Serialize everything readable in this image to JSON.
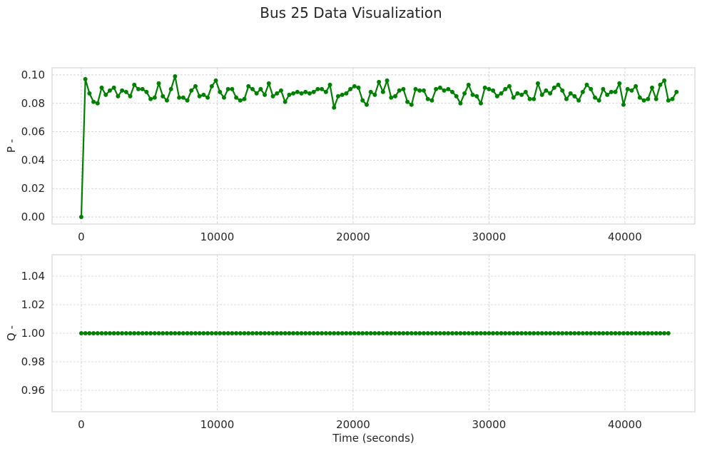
{
  "figure_title": "Bus 25 Data Visualization",
  "chart_data": [
    {
      "type": "line",
      "ylabel": "P -",
      "xlabel": "",
      "xlim": [
        -2150,
        45150
      ],
      "ylim": [
        -0.005,
        0.105
      ],
      "xticks": [
        0,
        10000,
        20000,
        30000,
        40000
      ],
      "xtick_labels": [
        "0",
        "10000",
        "20000",
        "30000",
        "40000"
      ],
      "yticks": [
        0.0,
        0.02,
        0.04,
        0.06,
        0.08,
        0.1
      ],
      "ytick_labels": [
        "0.00",
        "0.02",
        "0.04",
        "0.06",
        "0.08",
        "0.10"
      ],
      "grid": true,
      "color": "#008000",
      "x_start": 0,
      "x_step": 300,
      "values": [
        0.0,
        0.097,
        0.087,
        0.081,
        0.08,
        0.091,
        0.086,
        0.089,
        0.091,
        0.085,
        0.089,
        0.088,
        0.085,
        0.093,
        0.09,
        0.09,
        0.088,
        0.083,
        0.084,
        0.094,
        0.085,
        0.082,
        0.09,
        0.099,
        0.084,
        0.084,
        0.082,
        0.089,
        0.092,
        0.085,
        0.086,
        0.084,
        0.092,
        0.096,
        0.088,
        0.084,
        0.09,
        0.09,
        0.084,
        0.082,
        0.083,
        0.092,
        0.09,
        0.087,
        0.09,
        0.086,
        0.094,
        0.085,
        0.087,
        0.089,
        0.081,
        0.086,
        0.087,
        0.088,
        0.087,
        0.088,
        0.087,
        0.088,
        0.09,
        0.09,
        0.088,
        0.093,
        0.077,
        0.085,
        0.086,
        0.087,
        0.09,
        0.092,
        0.091,
        0.082,
        0.079,
        0.088,
        0.086,
        0.095,
        0.088,
        0.096,
        0.084,
        0.085,
        0.089,
        0.09,
        0.081,
        0.079,
        0.09,
        0.089,
        0.089,
        0.083,
        0.082,
        0.09,
        0.091,
        0.089,
        0.09,
        0.088,
        0.085,
        0.08,
        0.087,
        0.093,
        0.086,
        0.085,
        0.08,
        0.091,
        0.09,
        0.089,
        0.085,
        0.087,
        0.09,
        0.092,
        0.084,
        0.087,
        0.086,
        0.088,
        0.083,
        0.083,
        0.094,
        0.086,
        0.089,
        0.087,
        0.091,
        0.093,
        0.089,
        0.083,
        0.087,
        0.085,
        0.082,
        0.088,
        0.093,
        0.09,
        0.084,
        0.082,
        0.09,
        0.086,
        0.088,
        0.088,
        0.094,
        0.079,
        0.09,
        0.089,
        0.092,
        0.084,
        0.082,
        0.083,
        0.091,
        0.083,
        0.093,
        0.096,
        0.082,
        0.083,
        0.088
      ]
    },
    {
      "type": "line",
      "ylabel": "Q -",
      "xlabel": "Time (seconds)",
      "xlim": [
        -2150,
        45150
      ],
      "ylim": [
        0.945,
        1.055
      ],
      "xticks": [
        0,
        10000,
        20000,
        30000,
        40000
      ],
      "xtick_labels": [
        "0",
        "10000",
        "20000",
        "30000",
        "40000"
      ],
      "yticks": [
        0.96,
        0.98,
        1.0,
        1.02,
        1.04
      ],
      "ytick_labels": [
        "0.96",
        "0.98",
        "1.00",
        "1.02",
        "1.04"
      ],
      "grid": true,
      "color": "#008000",
      "x_start": 0,
      "x_step": 300,
      "constant_value": 1.0,
      "count": 145
    }
  ]
}
